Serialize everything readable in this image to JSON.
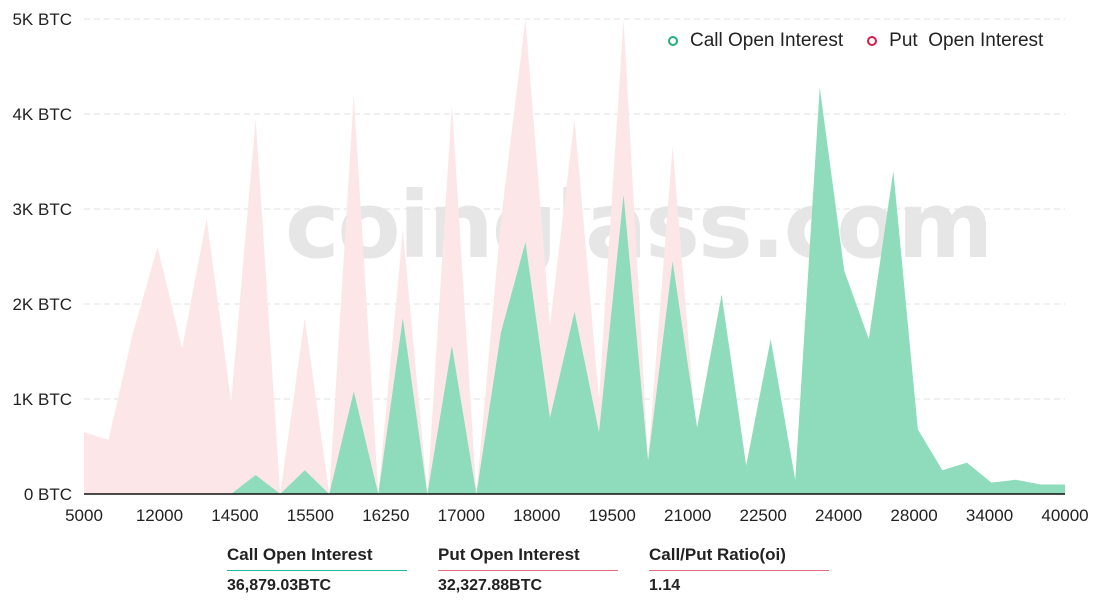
{
  "chart_data": {
    "type": "area",
    "ylim": [
      0,
      5000
    ],
    "y_tick_labels": [
      "0 BTC",
      "1K BTC",
      "2K BTC",
      "3K BTC",
      "4K BTC",
      "5K BTC"
    ],
    "y_tick_values": [
      0,
      1000,
      2000,
      3000,
      4000,
      5000
    ],
    "x_tick_labels": [
      "5000",
      "12000",
      "14500",
      "15500",
      "16250",
      "17000",
      "18000",
      "19500",
      "21000",
      "22500",
      "24000",
      "28000",
      "34000",
      "40000"
    ],
    "grid": true,
    "legend_position": "top-right",
    "series": [
      {
        "name": "Call Open Interest",
        "color": "#8fdcbd",
        "legend_color": "#22b07a",
        "values": [
          0,
          0,
          0,
          0,
          0,
          0,
          0,
          200,
          0,
          250,
          0,
          1080,
          0,
          1850,
          0,
          1560,
          0,
          1700,
          2650,
          800,
          1920,
          650,
          3150,
          350,
          2450,
          700,
          2100,
          300,
          1630,
          150,
          4280,
          2350,
          1630,
          3400,
          680,
          250,
          330,
          120,
          150,
          100,
          100
        ]
      },
      {
        "name": "Put  Open Interest",
        "color": "#fde6e8",
        "legend_color": "#d81b4e",
        "values": [
          650,
          570,
          1700,
          2600,
          1530,
          2900,
          970,
          3950,
          0,
          1850,
          0,
          4200,
          0,
          2780,
          0,
          4100,
          0,
          2880,
          5000,
          1770,
          3950,
          1000,
          5000,
          350,
          3660,
          500,
          2000,
          300,
          1050,
          150,
          1000,
          200,
          350,
          100,
          0,
          0,
          0,
          0,
          0,
          0,
          0
        ]
      }
    ]
  },
  "legend": {
    "call_label": "Call Open Interest",
    "put_label": "Put  Open Interest",
    "call_color": "#22b07a",
    "put_color": "#d81b4e"
  },
  "watermark": "coinglass.com",
  "summary": {
    "call_label": "Call Open Interest",
    "call_value": "36,879.03BTC",
    "call_color": "#1fb8a6",
    "put_label": "Put Open Interest",
    "put_value": "32,327.88BTC",
    "put_color": "#e06c7d",
    "ratio_label": "Call/Put Ratio(oi)",
    "ratio_value": "1.14",
    "ratio_color": "#e06c7d"
  }
}
